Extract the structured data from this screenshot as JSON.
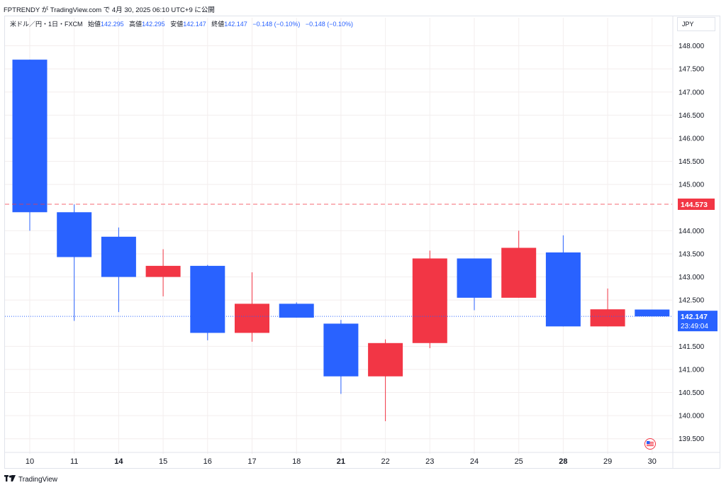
{
  "header": {
    "text": "FPTRENDY が TradingView.com で 4月 30, 2025 06:10 UTC+9 に公開"
  },
  "legend": {
    "symbol": "米ドル／円・1日・FXCM",
    "open_label": "始値",
    "open_value": "142.295",
    "high_label": "高値",
    "high_value": "142.295",
    "low_label": "安値",
    "low_value": "142.147",
    "close_label": "終値",
    "close_value": "142.147",
    "change": "−0.148 (−0.10%)",
    "change2": "−0.148 (−0.10%)"
  },
  "currency": "JPY",
  "footer": {
    "brand": "TradingView"
  },
  "colors": {
    "up": "#f23645",
    "down": "#2962ff",
    "dashed_line": "#f23645",
    "price_badge": "#2962ff",
    "level_badge": "#f23645"
  },
  "chart_data": {
    "type": "candlestick",
    "x_labels": [
      "10",
      "11",
      "14",
      "15",
      "16",
      "17",
      "18",
      "21",
      "22",
      "23",
      "24",
      "25",
      "28",
      "29",
      "30"
    ],
    "bold_labels": [
      "14",
      "21",
      "28"
    ],
    "candles": [
      {
        "x": "10",
        "open": 147.7,
        "high": 147.7,
        "low": 144.0,
        "close": 144.4
      },
      {
        "x": "11",
        "open": 144.4,
        "high": 144.57,
        "low": 142.05,
        "close": 143.43
      },
      {
        "x": "14",
        "open": 143.87,
        "high": 144.07,
        "low": 142.24,
        "close": 143.0
      },
      {
        "x": "15",
        "open": 143.0,
        "high": 143.6,
        "low": 142.58,
        "close": 143.24
      },
      {
        "x": "16",
        "open": 143.24,
        "high": 143.26,
        "low": 141.63,
        "close": 141.79
      },
      {
        "x": "17",
        "open": 141.79,
        "high": 143.1,
        "low": 141.6,
        "close": 142.42
      },
      {
        "x": "18",
        "open": 142.42,
        "high": 142.45,
        "low": 142.12,
        "close": 142.12
      },
      {
        "x": "21",
        "open": 141.99,
        "high": 142.07,
        "low": 140.47,
        "close": 140.85
      },
      {
        "x": "22",
        "open": 140.85,
        "high": 141.65,
        "low": 139.88,
        "close": 141.57
      },
      {
        "x": "23",
        "open": 141.57,
        "high": 143.57,
        "low": 141.46,
        "close": 143.4
      },
      {
        "x": "24",
        "open": 143.4,
        "high": 143.4,
        "low": 142.28,
        "close": 142.55
      },
      {
        "x": "25",
        "open": 142.55,
        "high": 144.0,
        "low": 142.55,
        "close": 143.63
      },
      {
        "x": "28",
        "open": 143.53,
        "high": 143.9,
        "low": 141.93,
        "close": 141.93
      },
      {
        "x": "29",
        "open": 141.93,
        "high": 142.75,
        "low": 141.93,
        "close": 142.3
      },
      {
        "x": "30",
        "open": 142.295,
        "high": 142.295,
        "low": 142.147,
        "close": 142.147
      }
    ],
    "y_ticks": [
      "148.000",
      "147.500",
      "147.000",
      "146.500",
      "146.000",
      "145.500",
      "145.000",
      "144.000",
      "143.500",
      "143.000",
      "142.500",
      "141.500",
      "141.000",
      "140.500",
      "140.000",
      "139.500"
    ],
    "ylim": [
      139.22,
      148.3
    ],
    "level_line": {
      "value": 144.573,
      "label": "144.573"
    },
    "last_price": {
      "value": 142.147,
      "label": "142.147",
      "countdown": "23:49:04"
    },
    "grid": true
  }
}
